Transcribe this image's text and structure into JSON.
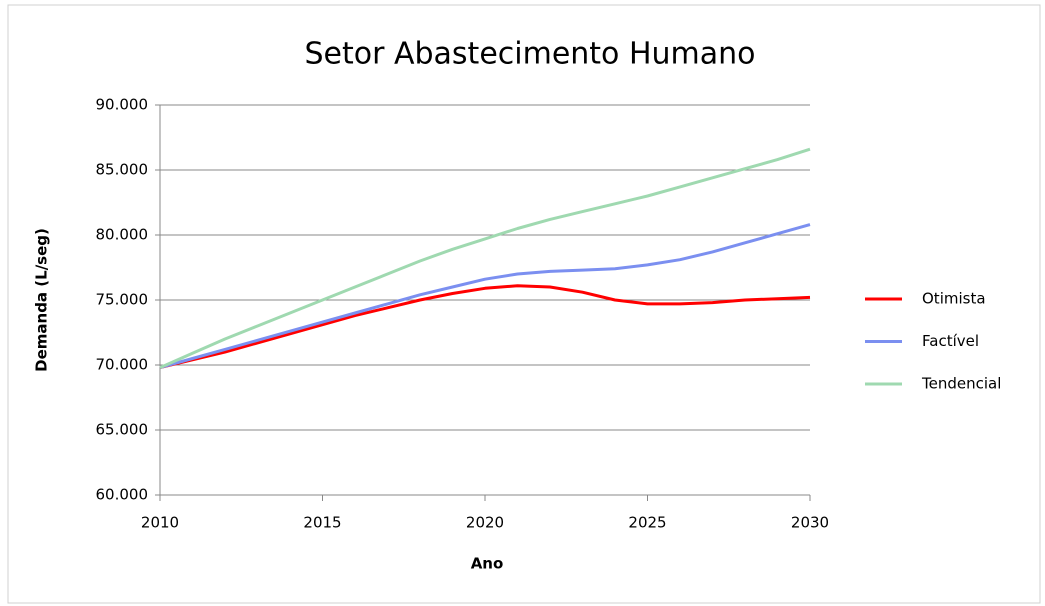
{
  "chart_data": {
    "type": "line",
    "title": "Setor Abastecimento Humano",
    "x_label": "Ano",
    "y_label": "Demanda (L/seg)",
    "x": [
      2010,
      2011,
      2012,
      2013,
      2014,
      2015,
      2016,
      2017,
      2018,
      2019,
      2020,
      2021,
      2022,
      2023,
      2024,
      2025,
      2026,
      2027,
      2028,
      2029,
      2030
    ],
    "series": [
      {
        "name": "Otimista",
        "color": "#ff0000",
        "values": [
          69800,
          70400,
          71000,
          71700,
          72400,
          73100,
          73800,
          74400,
          75000,
          75500,
          75900,
          76100,
          76000,
          75600,
          75000,
          74700,
          74700,
          74800,
          75000,
          75100,
          75200
        ]
      },
      {
        "name": "Factível",
        "color": "#7b8ff0",
        "values": [
          69800,
          70500,
          71200,
          71900,
          72600,
          73300,
          74000,
          74700,
          75400,
          76000,
          76600,
          77000,
          77200,
          77300,
          77400,
          77700,
          78100,
          78700,
          79400,
          80100,
          80800
        ]
      },
      {
        "name": "Tendencial",
        "color": "#9fd9b0",
        "values": [
          69800,
          70900,
          72000,
          73000,
          74000,
          75000,
          76000,
          77000,
          78000,
          78900,
          79700,
          80500,
          81200,
          81800,
          82400,
          83000,
          83700,
          84400,
          85100,
          85800,
          86600
        ]
      }
    ],
    "xlim": [
      2010,
      2030
    ],
    "xticks": [
      2010,
      2015,
      2020,
      2025,
      2030
    ],
    "ylim": [
      60000,
      90000
    ],
    "yticks": [
      {
        "value": 60000,
        "label": "60.000"
      },
      {
        "value": 65000,
        "label": "65.000"
      },
      {
        "value": 70000,
        "label": "70.000"
      },
      {
        "value": 75000,
        "label": "75.000"
      },
      {
        "value": 80000,
        "label": "80.000"
      },
      {
        "value": 85000,
        "label": "85.000"
      },
      {
        "value": 90000,
        "label": "90.000"
      }
    ],
    "grid": true,
    "legend": "right"
  }
}
